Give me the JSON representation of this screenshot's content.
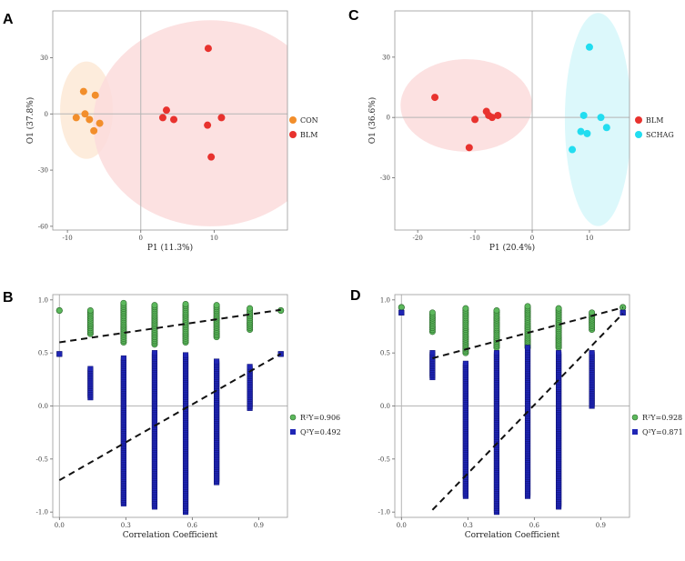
{
  "chart_data": [
    {
      "panel": "A",
      "type": "scatter",
      "xlabel": "P1 (11.3%)",
      "ylabel": "O1 (37.8%)",
      "xlim": [
        -12,
        20
      ],
      "ylim": [
        -62,
        55
      ],
      "xticks": [
        -10,
        0,
        10
      ],
      "yticks": [
        -60,
        -30,
        0,
        30
      ],
      "series": [
        {
          "name": "CON",
          "color": "#f28e2b",
          "ellipse_color": "#fde9d6",
          "points": [
            [
              -7.8,
              12
            ],
            [
              -6.2,
              10
            ],
            [
              -8.8,
              -2
            ],
            [
              -7.6,
              0
            ],
            [
              -7.0,
              -3
            ],
            [
              -5.6,
              -5
            ],
            [
              -6.4,
              -9
            ]
          ],
          "ellipse": {
            "cx": -7.4,
            "cy": 2,
            "rx": 3.6,
            "ry": 26
          }
        },
        {
          "name": "BLM",
          "color": "#e8322e",
          "ellipse_color": "#fbdcdc",
          "points": [
            [
              9.2,
              35
            ],
            [
              3.5,
              2
            ],
            [
              3.0,
              -2
            ],
            [
              4.5,
              -3
            ],
            [
              11,
              -2
            ],
            [
              9.1,
              -6
            ],
            [
              9.6,
              -23
            ]
          ],
          "ellipse": {
            "cx": 9.5,
            "cy": -5,
            "rx": 16,
            "ry": 55
          }
        }
      ]
    },
    {
      "panel": "C",
      "type": "scatter",
      "xlabel": "P1 (20.4%)",
      "ylabel": "O1 (36.6%)",
      "xlim": [
        -24,
        17
      ],
      "ylim": [
        -56,
        53
      ],
      "xticks": [
        -20,
        -10,
        0,
        10
      ],
      "yticks": [
        -30,
        0,
        30
      ],
      "series": [
        {
          "name": "BLM",
          "color": "#e8322e",
          "ellipse_color": "#fbdcdc",
          "points": [
            [
              -17,
              10
            ],
            [
              -11,
              -15
            ],
            [
              -10,
              -1
            ],
            [
              -8,
              3
            ],
            [
              -7.6,
              1
            ],
            [
              -7,
              0
            ],
            [
              -6,
              1
            ]
          ],
          "ellipse": {
            "cx": -11.5,
            "cy": 6,
            "rx": 11.5,
            "ry": 23
          }
        },
        {
          "name": "SCHAG",
          "color": "#22ddf0",
          "ellipse_color": "#d6f7fa",
          "points": [
            [
              10,
              35
            ],
            [
              9,
              1
            ],
            [
              12,
              0
            ],
            [
              8.5,
              -7
            ],
            [
              9.6,
              -8
            ],
            [
              13,
              -5
            ],
            [
              7,
              -16
            ]
          ],
          "ellipse": {
            "cx": 11.5,
            "cy": -1,
            "rx": 5.8,
            "ry": 53
          }
        }
      ]
    },
    {
      "panel": "B",
      "type": "scatter",
      "xlabel": "Correlation Coefficient",
      "ylabel": "",
      "xlim": [
        -0.03,
        1.03
      ],
      "ylim": [
        -1.05,
        1.05
      ],
      "xticks": [
        0.0,
        0.3,
        0.6,
        0.9
      ],
      "yticks": [
        -1.0,
        -0.5,
        0.0,
        0.5,
        1.0
      ],
      "xtick_labels": [
        "0.0",
        "0.3",
        "0.6",
        "0.9"
      ],
      "ytick_labels": [
        "-1.0",
        "-0.5",
        "0.0",
        "0.5",
        "1.0"
      ],
      "series": [
        {
          "name": "R²Y=0.906",
          "color": "#5cb85c",
          "marker": "circle",
          "columns": [
            {
              "x": 0.0,
              "range": [
                0.9,
                0.9
              ]
            },
            {
              "x": 0.14,
              "range": [
                0.68,
                0.9
              ]
            },
            {
              "x": 0.29,
              "range": [
                0.6,
                0.97
              ]
            },
            {
              "x": 0.43,
              "range": [
                0.58,
                0.95
              ]
            },
            {
              "x": 0.57,
              "range": [
                0.6,
                0.96
              ]
            },
            {
              "x": 0.71,
              "range": [
                0.65,
                0.95
              ]
            },
            {
              "x": 0.86,
              "range": [
                0.72,
                0.92
              ]
            },
            {
              "x": 1.0,
              "range": [
                0.9,
                0.9
              ]
            }
          ],
          "intercept_line": {
            "x": [
              0.0,
              1.0
            ],
            "y": [
              0.6,
              0.906
            ]
          }
        },
        {
          "name": "Q²Y=0.492",
          "color": "#1f25b5",
          "marker": "square",
          "columns": [
            {
              "x": 0.0,
              "range": [
                0.49,
                0.49
              ]
            },
            {
              "x": 0.14,
              "range": [
                0.08,
                0.35
              ]
            },
            {
              "x": 0.29,
              "range": [
                -0.92,
                0.45
              ]
            },
            {
              "x": 0.43,
              "range": [
                -0.95,
                0.5
              ]
            },
            {
              "x": 0.57,
              "range": [
                -1.0,
                0.48
              ]
            },
            {
              "x": 0.71,
              "range": [
                -0.72,
                0.42
              ]
            },
            {
              "x": 0.86,
              "range": [
                -0.02,
                0.37
              ]
            },
            {
              "x": 1.0,
              "range": [
                0.49,
                0.49
              ]
            }
          ],
          "intercept_line": {
            "x": [
              0.0,
              1.0
            ],
            "y": [
              -0.7,
              0.492
            ]
          }
        }
      ]
    },
    {
      "panel": "D",
      "type": "scatter",
      "xlabel": "Correlation Coefficient",
      "ylabel": "",
      "xlim": [
        -0.03,
        1.03
      ],
      "ylim": [
        -1.05,
        1.05
      ],
      "xticks": [
        0.0,
        0.3,
        0.6,
        0.9
      ],
      "yticks": [
        -1.0,
        -0.5,
        0.0,
        0.5,
        1.0
      ],
      "xtick_labels": [
        "0.0",
        "0.3",
        "0.6",
        "0.9"
      ],
      "ytick_labels": [
        "-1.0",
        "-0.5",
        "0.0",
        "0.5",
        "1.0"
      ],
      "series": [
        {
          "name": "R²Y=0.928",
          "color": "#5cb85c",
          "marker": "circle",
          "columns": [
            {
              "x": 0.0,
              "range": [
                0.93,
                0.93
              ]
            },
            {
              "x": 0.14,
              "range": [
                0.7,
                0.88
              ]
            },
            {
              "x": 0.29,
              "range": [
                0.5,
                0.92
              ]
            },
            {
              "x": 0.43,
              "range": [
                0.55,
                0.9
              ]
            },
            {
              "x": 0.57,
              "range": [
                0.55,
                0.94
              ]
            },
            {
              "x": 0.71,
              "range": [
                0.55,
                0.92
              ]
            },
            {
              "x": 0.86,
              "range": [
                0.72,
                0.88
              ]
            },
            {
              "x": 1.0,
              "range": [
                0.93,
                0.93
              ]
            }
          ],
          "intercept_line": {
            "x": [
              0.14,
              1.0
            ],
            "y": [
              0.45,
              0.928
            ]
          }
        },
        {
          "name": "Q²Y=0.871",
          "color": "#1f25b5",
          "marker": "square",
          "columns": [
            {
              "x": 0.0,
              "range": [
                0.88,
                0.88
              ]
            },
            {
              "x": 0.14,
              "range": [
                0.27,
                0.5
              ]
            },
            {
              "x": 0.29,
              "range": [
                -0.85,
                0.4
              ]
            },
            {
              "x": 0.43,
              "range": [
                -1.0,
                0.5
              ]
            },
            {
              "x": 0.57,
              "range": [
                -0.85,
                0.55
              ]
            },
            {
              "x": 0.71,
              "range": [
                -0.95,
                0.5
              ]
            },
            {
              "x": 0.86,
              "range": [
                0.0,
                0.5
              ]
            },
            {
              "x": 1.0,
              "range": [
                0.88,
                0.88
              ]
            }
          ],
          "intercept_line": {
            "x": [
              0.14,
              1.0
            ],
            "y": [
              -0.98,
              0.871
            ]
          }
        }
      ]
    }
  ]
}
